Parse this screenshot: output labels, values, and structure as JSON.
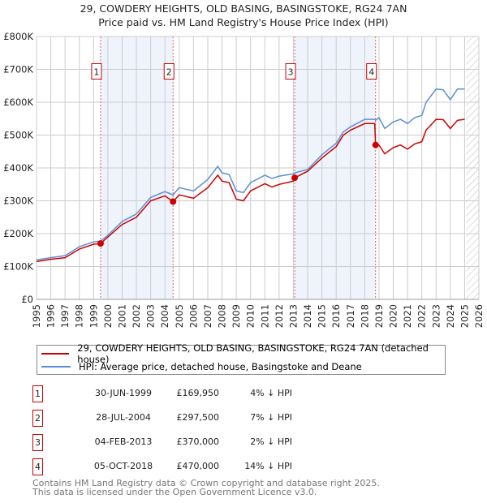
{
  "chart_data": {
    "type": "line",
    "title": "29, COWDERY HEIGHTS, OLD BASING, BASINGSTOKE, RG24 7AN",
    "subtitle": "Price paid vs. HM Land Registry's House Price Index (HPI)",
    "xlim": [
      1995,
      2026
    ],
    "ylim": [
      0,
      800000
    ],
    "y_ticks": [
      {
        "v": 0,
        "label": "£0"
      },
      {
        "v": 100000,
        "label": "£100K"
      },
      {
        "v": 200000,
        "label": "£200K"
      },
      {
        "v": 300000,
        "label": "£300K"
      },
      {
        "v": 400000,
        "label": "£400K"
      },
      {
        "v": 500000,
        "label": "£500K"
      },
      {
        "v": 600000,
        "label": "£600K"
      },
      {
        "v": 700000,
        "label": "£700K"
      },
      {
        "v": 800000,
        "label": "£800K"
      }
    ],
    "x_ticks": [
      "1995",
      "1996",
      "1997",
      "1998",
      "1999",
      "2000",
      "2001",
      "2002",
      "2003",
      "2004",
      "2005",
      "2006",
      "2007",
      "2008",
      "2009",
      "2010",
      "2011",
      "2012",
      "2013",
      "2014",
      "2015",
      "2016",
      "2017",
      "2018",
      "2019",
      "2020",
      "2021",
      "2022",
      "2023",
      "2024",
      "2025",
      "2026"
    ],
    "grid": true,
    "shaded_ranges": [
      [
        1999.49,
        2004.57
      ],
      [
        2013.09,
        2018.76
      ]
    ],
    "forecast_from": 2025.1,
    "series": [
      {
        "name": "29, COWDERY HEIGHTS, OLD BASING, BASINGSTOKE, RG24 7AN (detached house)",
        "color": "#cc0000",
        "x": [
          1995,
          1996,
          1997,
          1998,
          1999,
          1999.49,
          2000,
          2001,
          2002,
          2003,
          2004,
          2004.57,
          2005,
          2006,
          2007,
          2007.7,
          2008,
          2008.5,
          2009,
          2009.5,
          2010,
          2011,
          2011.5,
          2012,
          2013,
          2013.09,
          2014,
          2015,
          2016,
          2016.5,
          2017,
          2018,
          2018.7,
          2018.76,
          2019,
          2019.4,
          2020,
          2020.5,
          2021,
          2021.5,
          2022,
          2022.3,
          2023,
          2023.5,
          2024,
          2024.5,
          2025
        ],
        "y": [
          115000,
          122000,
          127000,
          153000,
          168000,
          169950,
          190000,
          228000,
          250000,
          300000,
          315000,
          297500,
          318000,
          308000,
          340000,
          378000,
          360000,
          355000,
          305000,
          300000,
          330000,
          352000,
          342000,
          350000,
          360000,
          370000,
          390000,
          430000,
          465000,
          500000,
          515000,
          535000,
          535000,
          470000,
          470000,
          443000,
          462000,
          470000,
          457000,
          473000,
          480000,
          515000,
          548000,
          547000,
          520000,
          545000,
          548000
        ]
      },
      {
        "name": "HPI: Average price, detached house, Basingstoke and Deane",
        "color": "#5b8fd4",
        "x": [
          1995,
          1996,
          1997,
          1998,
          1999,
          1999.49,
          2000,
          2001,
          2002,
          2003,
          2004,
          2004.57,
          2005,
          2006,
          2007,
          2007.7,
          2008,
          2008.5,
          2009,
          2009.5,
          2010,
          2011,
          2011.5,
          2012,
          2013,
          2013.09,
          2014,
          2015,
          2016,
          2016.5,
          2017,
          2018,
          2018.7,
          2018.76,
          2019,
          2019.4,
          2020,
          2020.5,
          2021,
          2021.5,
          2022,
          2022.3,
          2023,
          2023.5,
          2024,
          2024.5,
          2025
        ],
        "y": [
          120000,
          127000,
          133000,
          160000,
          175000,
          177000,
          195000,
          237000,
          260000,
          310000,
          328000,
          318000,
          340000,
          330000,
          365000,
          405000,
          385000,
          380000,
          330000,
          325000,
          355000,
          378000,
          368000,
          375000,
          382000,
          385000,
          395000,
          440000,
          475000,
          510000,
          525000,
          548000,
          548000,
          545000,
          553000,
          520000,
          540000,
          548000,
          535000,
          553000,
          560000,
          600000,
          640000,
          638000,
          608000,
          640000,
          640000
        ]
      }
    ],
    "sales": [
      {
        "n": "1",
        "x": 1999.49,
        "y": 169950,
        "date": "30-JUN-1999",
        "price": "£169,950",
        "hpi": "4% ↓ HPI"
      },
      {
        "n": "2",
        "x": 2004.57,
        "y": 297500,
        "date": "28-JUL-2004",
        "price": "£297,500",
        "hpi": "7% ↓ HPI"
      },
      {
        "n": "3",
        "x": 2013.09,
        "y": 370000,
        "date": "04-FEB-2013",
        "price": "£370,000",
        "hpi": "2% ↓ HPI"
      },
      {
        "n": "4",
        "x": 2018.76,
        "y": 470000,
        "date": "05-OCT-2018",
        "price": "£470,000",
        "hpi": "14% ↓ HPI"
      }
    ]
  },
  "footer": {
    "line1": "Contains HM Land Registry data © Crown copyright and database right 2025.",
    "line2": "This data is licensed under the Open Government Licence v3.0."
  }
}
